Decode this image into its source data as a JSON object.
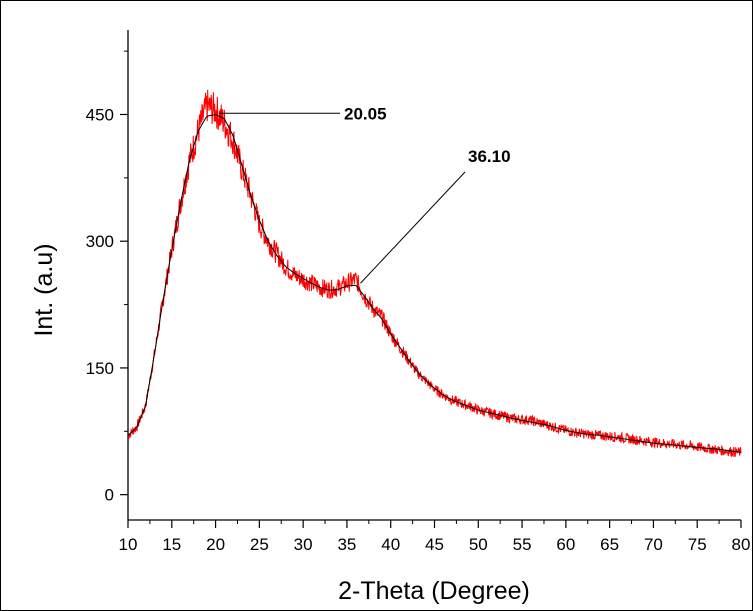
{
  "chart_data": {
    "type": "line",
    "title": "",
    "xlabel": "2-Theta (Degree)",
    "ylabel": "Int. (a.u)",
    "xlim": [
      10,
      80
    ],
    "ylim": [
      -30,
      550
    ],
    "x_ticks": [
      10,
      15,
      20,
      25,
      30,
      35,
      40,
      45,
      50,
      55,
      60,
      65,
      70,
      75,
      80
    ],
    "x_tick_labels": [
      "10",
      "15",
      "20",
      "25",
      "30",
      "35",
      "40",
      "45",
      "50",
      "55",
      "60",
      "65",
      "70",
      "75",
      "80"
    ],
    "y_ticks": [
      0,
      150,
      300,
      450
    ],
    "y_tick_labels": [
      "0",
      "150",
      "300",
      "450"
    ],
    "grid": false,
    "legend": "none",
    "series": [
      {
        "color": "#ff0000",
        "style": "noisy-raw",
        "x": [
          10,
          11,
          12,
          13,
          14,
          15,
          16,
          17,
          18,
          19,
          20,
          21,
          22,
          23,
          24,
          25,
          26,
          27,
          28,
          29,
          30,
          31,
          32,
          33,
          34,
          35,
          36,
          37,
          38,
          39,
          40,
          41,
          42,
          43,
          44,
          45,
          46,
          47,
          48,
          49,
          50,
          52,
          54,
          56,
          58,
          60,
          62,
          64,
          66,
          68,
          70,
          72,
          74,
          76,
          78,
          80
        ],
        "y": [
          70,
          80,
          105,
          165,
          230,
          290,
          345,
          395,
          430,
          460,
          455,
          440,
          420,
          385,
          355,
          320,
          300,
          285,
          270,
          260,
          255,
          250,
          245,
          243,
          245,
          250,
          255,
          235,
          220,
          210,
          190,
          175,
          160,
          145,
          135,
          125,
          118,
          112,
          108,
          105,
          100,
          95,
          90,
          88,
          82,
          76,
          72,
          70,
          68,
          65,
          62,
          60,
          58,
          55,
          52,
          50
        ]
      },
      {
        "color": "#000000",
        "style": "smoothed",
        "x": [
          10,
          11,
          12,
          13,
          14,
          15,
          16,
          17,
          18,
          19,
          20,
          21,
          22,
          23,
          24,
          25,
          26,
          27,
          28,
          29,
          30,
          31,
          32,
          33,
          34,
          35,
          36,
          37,
          38,
          39,
          40,
          41,
          42,
          43,
          44,
          45,
          46,
          47,
          48,
          49,
          50,
          52,
          54,
          56,
          58,
          60,
          62,
          64,
          66,
          68,
          70,
          72,
          74,
          76,
          78,
          80
        ],
        "y": [
          70,
          80,
          105,
          165,
          230,
          290,
          345,
          395,
          430,
          448,
          450,
          445,
          425,
          390,
          355,
          325,
          300,
          283,
          270,
          262,
          256,
          250,
          245,
          242,
          243,
          247,
          248,
          235,
          220,
          208,
          190,
          175,
          160,
          146,
          135,
          126,
          118,
          112,
          108,
          104,
          100,
          95,
          90,
          86,
          82,
          76,
          72,
          70,
          67,
          64,
          61,
          59,
          57,
          55,
          53,
          50
        ]
      }
    ],
    "annotations": [
      {
        "text": "20.05",
        "peak_x": 20.05,
        "peak_y": 455
      },
      {
        "text": "36.10",
        "peak_x": 36.1,
        "peak_y": 248
      }
    ]
  }
}
